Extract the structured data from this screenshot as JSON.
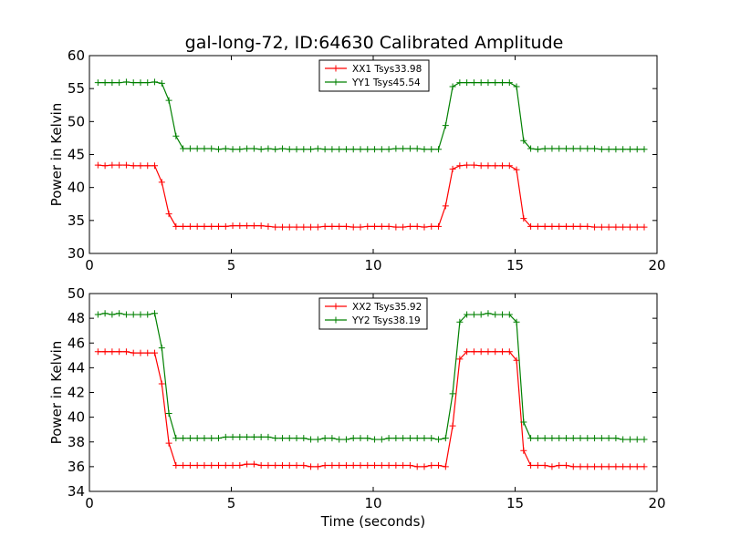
{
  "figure": {
    "title": "gal-long-72, ID:64630 Calibrated Amplitude"
  },
  "chart_data": [
    {
      "type": "line",
      "title": "gal-long-72, ID:64630 Calibrated Amplitude",
      "xlabel": "",
      "ylabel": "Power in Kelvin",
      "xlim": [
        0,
        20
      ],
      "ylim": [
        30,
        60
      ],
      "xticks": [
        0,
        5,
        10,
        15,
        20
      ],
      "yticks": [
        30,
        35,
        40,
        45,
        50,
        55,
        60
      ],
      "grid": false,
      "legend": "top-center",
      "x": [
        0.3,
        0.55,
        0.8,
        1.05,
        1.3,
        1.55,
        1.8,
        2.05,
        2.3,
        2.55,
        2.8,
        3.05,
        3.3,
        3.55,
        3.8,
        4.05,
        4.3,
        4.55,
        4.8,
        5.05,
        5.3,
        5.55,
        5.8,
        6.05,
        6.3,
        6.55,
        6.8,
        7.05,
        7.3,
        7.55,
        7.8,
        8.05,
        8.3,
        8.55,
        8.8,
        9.05,
        9.3,
        9.55,
        9.8,
        10.05,
        10.3,
        10.55,
        10.8,
        11.05,
        11.3,
        11.55,
        11.8,
        12.05,
        12.3,
        12.55,
        12.8,
        13.05,
        13.3,
        13.55,
        13.8,
        14.05,
        14.3,
        14.55,
        14.8,
        15.05,
        15.3,
        15.55,
        15.8,
        16.05,
        16.3,
        16.55,
        16.8,
        17.05,
        17.3,
        17.55,
        17.8,
        18.05,
        18.3,
        18.55,
        18.8,
        19.05,
        19.3,
        19.55
      ],
      "series": [
        {
          "name": "XX1 Tsys33.98",
          "color": "#ff0000",
          "values": [
            43.4,
            43.3,
            43.4,
            43.4,
            43.4,
            43.3,
            43.3,
            43.3,
            43.3,
            40.8,
            36.0,
            34.1,
            34.1,
            34.1,
            34.1,
            34.1,
            34.1,
            34.1,
            34.1,
            34.2,
            34.2,
            34.2,
            34.2,
            34.2,
            34.1,
            34.0,
            34.0,
            34.0,
            34.0,
            34.0,
            34.0,
            34.0,
            34.1,
            34.1,
            34.1,
            34.1,
            34.0,
            34.0,
            34.1,
            34.1,
            34.1,
            34.1,
            34.0,
            34.0,
            34.1,
            34.1,
            34.0,
            34.1,
            34.1,
            37.2,
            42.8,
            43.3,
            43.4,
            43.4,
            43.3,
            43.3,
            43.3,
            43.3,
            43.3,
            42.7,
            35.3,
            34.1,
            34.1,
            34.1,
            34.1,
            34.1,
            34.1,
            34.1,
            34.1,
            34.1,
            34.0,
            34.0,
            34.0,
            34.0,
            34.0,
            34.0,
            34.0,
            34.0
          ]
        },
        {
          "name": "YY1 Tsys45.54",
          "color": "#008000",
          "values": [
            55.9,
            55.9,
            55.9,
            55.9,
            56.0,
            55.9,
            55.9,
            55.9,
            56.0,
            55.8,
            53.2,
            47.8,
            45.9,
            45.9,
            45.9,
            45.9,
            45.9,
            45.8,
            45.9,
            45.8,
            45.8,
            45.9,
            45.9,
            45.8,
            45.9,
            45.8,
            45.9,
            45.8,
            45.8,
            45.8,
            45.8,
            45.9,
            45.8,
            45.8,
            45.8,
            45.8,
            45.8,
            45.8,
            45.8,
            45.8,
            45.8,
            45.8,
            45.9,
            45.9,
            45.9,
            45.9,
            45.8,
            45.8,
            45.8,
            49.4,
            55.3,
            55.9,
            55.9,
            55.9,
            55.9,
            55.9,
            55.9,
            55.9,
            55.9,
            55.3,
            47.1,
            45.9,
            45.8,
            45.9,
            45.9,
            45.9,
            45.9,
            45.9,
            45.9,
            45.9,
            45.9,
            45.8,
            45.8,
            45.8,
            45.8,
            45.8,
            45.8,
            45.8
          ]
        }
      ]
    },
    {
      "type": "line",
      "title": "",
      "xlabel": "Time (seconds)",
      "ylabel": "Power in Kelvin",
      "xlim": [
        0,
        20
      ],
      "ylim": [
        34,
        50
      ],
      "xticks": [
        0,
        5,
        10,
        15,
        20
      ],
      "yticks": [
        34,
        36,
        38,
        40,
        42,
        44,
        46,
        48,
        50
      ],
      "grid": false,
      "legend": "top-center",
      "x": [
        0.3,
        0.55,
        0.8,
        1.05,
        1.3,
        1.55,
        1.8,
        2.05,
        2.3,
        2.55,
        2.8,
        3.05,
        3.3,
        3.55,
        3.8,
        4.05,
        4.3,
        4.55,
        4.8,
        5.05,
        5.3,
        5.55,
        5.8,
        6.05,
        6.3,
        6.55,
        6.8,
        7.05,
        7.3,
        7.55,
        7.8,
        8.05,
        8.3,
        8.55,
        8.8,
        9.05,
        9.3,
        9.55,
        9.8,
        10.05,
        10.3,
        10.55,
        10.8,
        11.05,
        11.3,
        11.55,
        11.8,
        12.05,
        12.3,
        12.55,
        12.8,
        13.05,
        13.3,
        13.55,
        13.8,
        14.05,
        14.3,
        14.55,
        14.8,
        15.05,
        15.3,
        15.55,
        15.8,
        16.05,
        16.3,
        16.55,
        16.8,
        17.05,
        17.3,
        17.55,
        17.8,
        18.05,
        18.3,
        18.55,
        18.8,
        19.05,
        19.3,
        19.55
      ],
      "series": [
        {
          "name": "XX2 Tsys35.92",
          "color": "#ff0000",
          "values": [
            45.3,
            45.3,
            45.3,
            45.3,
            45.3,
            45.2,
            45.2,
            45.2,
            45.2,
            42.7,
            37.9,
            36.1,
            36.1,
            36.1,
            36.1,
            36.1,
            36.1,
            36.1,
            36.1,
            36.1,
            36.1,
            36.2,
            36.2,
            36.1,
            36.1,
            36.1,
            36.1,
            36.1,
            36.1,
            36.1,
            36.0,
            36.0,
            36.1,
            36.1,
            36.1,
            36.1,
            36.1,
            36.1,
            36.1,
            36.1,
            36.1,
            36.1,
            36.1,
            36.1,
            36.1,
            36.0,
            36.0,
            36.1,
            36.1,
            36.0,
            39.3,
            44.7,
            45.3,
            45.3,
            45.3,
            45.3,
            45.3,
            45.3,
            45.3,
            44.6,
            37.3,
            36.1,
            36.1,
            36.1,
            36.0,
            36.1,
            36.1,
            36.0,
            36.0,
            36.0,
            36.0,
            36.0,
            36.0,
            36.0,
            36.0,
            36.0,
            36.0,
            36.0
          ]
        },
        {
          "name": "YY2 Tsys38.19",
          "color": "#008000",
          "values": [
            48.3,
            48.4,
            48.3,
            48.4,
            48.3,
            48.3,
            48.3,
            48.3,
            48.4,
            45.6,
            40.3,
            38.3,
            38.3,
            38.3,
            38.3,
            38.3,
            38.3,
            38.3,
            38.4,
            38.4,
            38.4,
            38.4,
            38.4,
            38.4,
            38.4,
            38.3,
            38.3,
            38.3,
            38.3,
            38.3,
            38.2,
            38.2,
            38.3,
            38.3,
            38.2,
            38.2,
            38.3,
            38.3,
            38.3,
            38.2,
            38.2,
            38.3,
            38.3,
            38.3,
            38.3,
            38.3,
            38.3,
            38.3,
            38.2,
            38.3,
            41.9,
            47.7,
            48.3,
            48.3,
            48.3,
            48.4,
            48.3,
            48.3,
            48.3,
            47.7,
            39.6,
            38.3,
            38.3,
            38.3,
            38.3,
            38.3,
            38.3,
            38.3,
            38.3,
            38.3,
            38.3,
            38.3,
            38.3,
            38.3,
            38.2,
            38.2,
            38.2,
            38.2
          ]
        }
      ]
    }
  ]
}
